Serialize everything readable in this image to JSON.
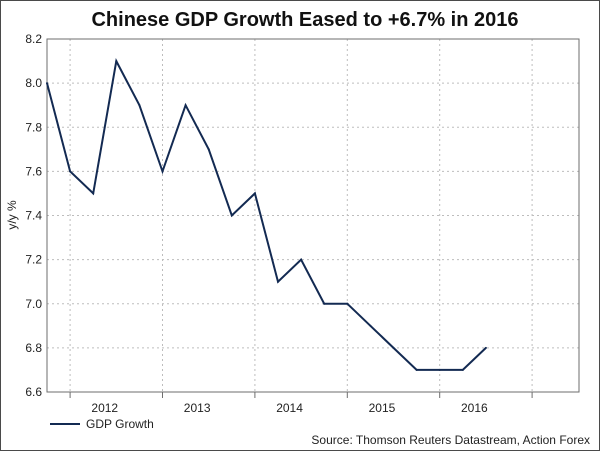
{
  "chart_data": {
    "type": "line",
    "title": "Chinese GDP Growth Eased to +6.7% in 2016",
    "ylabel": "y/y %",
    "xlabel": "",
    "ylim": [
      6.6,
      8.2
    ],
    "y_ticks": [
      "6.6",
      "6.8",
      "7.0",
      "7.2",
      "7.4",
      "7.6",
      "7.8",
      "8.0",
      "8.2"
    ],
    "x_ticks": [
      "2012",
      "2013",
      "2014",
      "2015",
      "2016"
    ],
    "grid": true,
    "legend_position": "bottom-left",
    "line_color": "#132a52",
    "series": [
      {
        "name": "GDP Growth",
        "x": [
          "2011-Q4",
          "2012-Q1",
          "2012-Q2",
          "2012-Q3",
          "2012-Q4",
          "2013-Q1",
          "2013-Q2",
          "2013-Q3",
          "2013-Q4",
          "2014-Q1",
          "2014-Q2",
          "2014-Q3",
          "2014-Q4",
          "2015-Q1",
          "2015-Q2",
          "2015-Q3",
          "2015-Q4",
          "2016-Q1",
          "2016-Q2",
          "2016-Q3"
        ],
        "values": [
          8.0,
          7.6,
          7.5,
          8.1,
          7.9,
          7.6,
          7.9,
          7.7,
          7.4,
          7.5,
          7.1,
          7.2,
          7.0,
          7.0,
          6.9,
          6.8,
          6.7,
          6.7,
          6.7,
          6.8
        ]
      }
    ],
    "source": "Source: Thomson Reuters Datastream, Action Forex"
  }
}
